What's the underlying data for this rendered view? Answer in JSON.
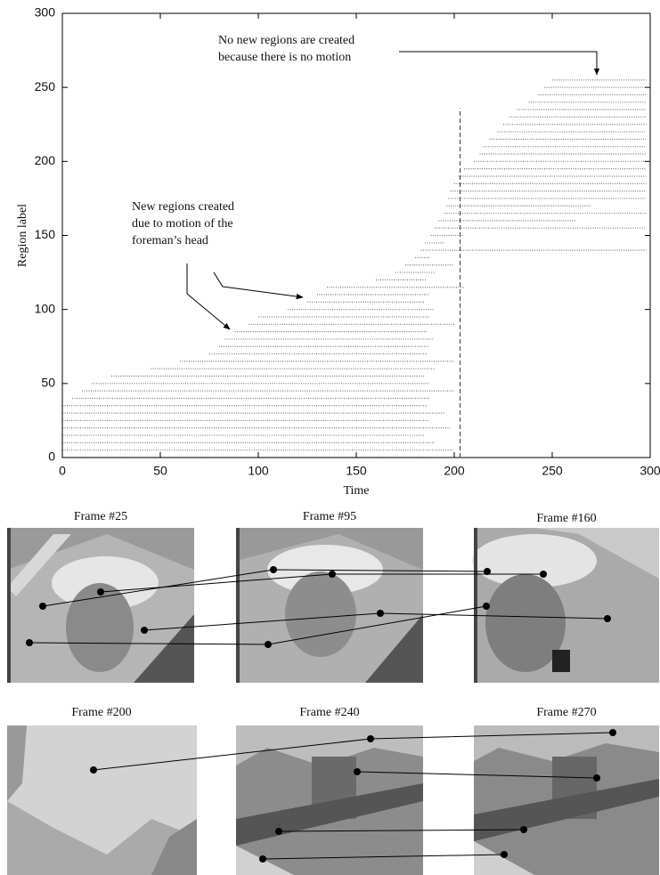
{
  "chart_data": {
    "type": "segments",
    "xlabel": "Time",
    "ylabel": "Region label",
    "xlim": [
      0,
      300
    ],
    "ylim": [
      0,
      300
    ],
    "xticks": [
      0,
      50,
      100,
      150,
      200,
      250,
      300
    ],
    "yticks": [
      0,
      50,
      100,
      150,
      200,
      250,
      300
    ],
    "color": "#777777",
    "vline": {
      "x": 203,
      "y_top": 236
    },
    "annotations": [
      {
        "lines": [
          "No new regions are created",
          "because there is no motion"
        ]
      },
      {
        "lines": [
          "New regions created",
          "due to motion of the",
          "foreman’s head"
        ]
      }
    ],
    "regions": [
      [
        0,
        0,
        187
      ],
      [
        5,
        0,
        200
      ],
      [
        10,
        0,
        190
      ],
      [
        15,
        0,
        185
      ],
      [
        20,
        0,
        198
      ],
      [
        25,
        0,
        187
      ],
      [
        30,
        0,
        195
      ],
      [
        35,
        0,
        186
      ],
      [
        40,
        5,
        188
      ],
      [
        45,
        10,
        200
      ],
      [
        50,
        15,
        187
      ],
      [
        55,
        25,
        185
      ],
      [
        60,
        45,
        190
      ],
      [
        65,
        60,
        200
      ],
      [
        70,
        75,
        186
      ],
      [
        75,
        80,
        187
      ],
      [
        80,
        83,
        189
      ],
      [
        85,
        88,
        186
      ],
      [
        90,
        95,
        200
      ],
      [
        95,
        100,
        187
      ],
      [
        100,
        115,
        190
      ],
      [
        105,
        125,
        185
      ],
      [
        110,
        130,
        187
      ],
      [
        115,
        135,
        205
      ],
      [
        120,
        160,
        186
      ],
      [
        125,
        170,
        190
      ],
      [
        130,
        175,
        200
      ],
      [
        135,
        180,
        188
      ],
      [
        140,
        183,
        298
      ],
      [
        145,
        185,
        195
      ],
      [
        150,
        188,
        205
      ],
      [
        155,
        190,
        298
      ],
      [
        160,
        192,
        262
      ],
      [
        165,
        195,
        298
      ],
      [
        170,
        196,
        270
      ],
      [
        175,
        197,
        298
      ],
      [
        180,
        198,
        298
      ],
      [
        185,
        200,
        298
      ],
      [
        190,
        202,
        298
      ],
      [
        195,
        205,
        298
      ],
      [
        200,
        210,
        298
      ],
      [
        205,
        213,
        298
      ],
      [
        210,
        215,
        298
      ],
      [
        215,
        218,
        298
      ],
      [
        220,
        222,
        298
      ],
      [
        225,
        225,
        298
      ],
      [
        230,
        228,
        298
      ],
      [
        235,
        232,
        298
      ],
      [
        240,
        238,
        298
      ],
      [
        245,
        243,
        298
      ],
      [
        250,
        246,
        298
      ],
      [
        255,
        250,
        298
      ]
    ]
  },
  "frames": [
    "Frame #25",
    "Frame #95",
    "Frame #160",
    "Frame #200",
    "Frame #240",
    "Frame #270"
  ]
}
